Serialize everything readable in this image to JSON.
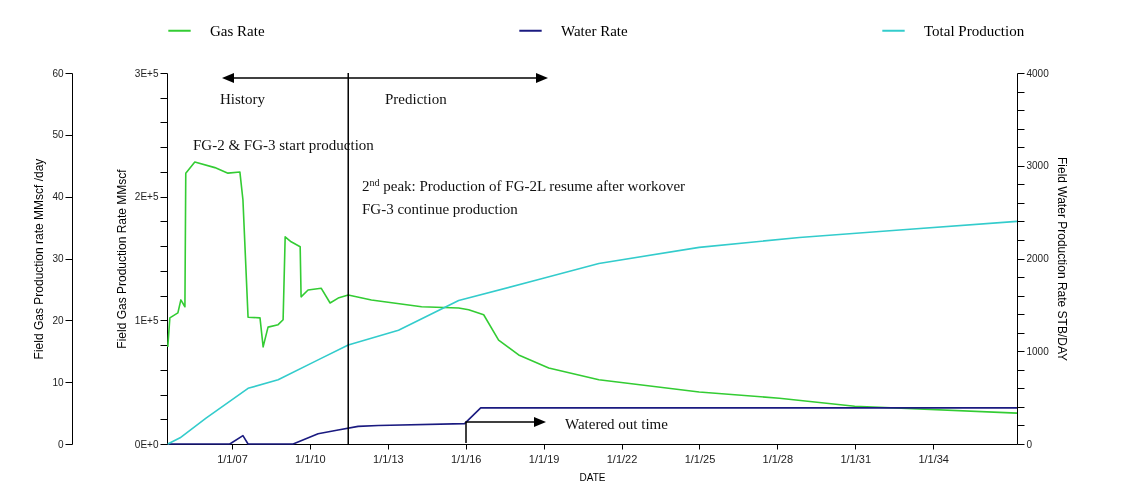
{
  "chart_data": {
    "type": "line",
    "xlabel": "DATE",
    "ylabel": "Field Gas Production rate  MMscf /day",
    "y2label": "Field Gas Production Rate  MMscf",
    "y3label": "Field Water Production Rate  STB/DAY",
    "xlim": [
      "2004-07-01",
      "2037-03-25"
    ],
    "xticks": [
      {
        "value": "2007-01-01",
        "label": "1/1/07"
      },
      {
        "value": "2010-01-01",
        "label": "1/1/10"
      },
      {
        "value": "2013-01-01",
        "label": "1/1/13"
      },
      {
        "value": "2016-01-01",
        "label": "1/1/16"
      },
      {
        "value": "2019-01-01",
        "label": "1/1/19"
      },
      {
        "value": "2022-01-01",
        "label": "1/1/22"
      },
      {
        "value": "2025-01-01",
        "label": "1/1/25"
      },
      {
        "value": "2028-01-01",
        "label": "1/1/28"
      },
      {
        "value": "2031-01-01",
        "label": "1/1/31"
      },
      {
        "value": "2034-01-01",
        "label": "1/1/34"
      }
    ],
    "ylim": [
      0,
      60
    ],
    "yticks": [
      0,
      10,
      20,
      30,
      40,
      50,
      60
    ],
    "y2lim": [
      0,
      300000
    ],
    "y2ticks": [
      {
        "value": 0,
        "label": "0E+0"
      },
      {
        "value": 20000,
        "label": null
      },
      {
        "value": 40000,
        "label": null
      },
      {
        "value": 60000,
        "label": null
      },
      {
        "value": 80000,
        "label": null
      },
      {
        "value": 100000,
        "label": "1E+5"
      },
      {
        "value": 120000,
        "label": null
      },
      {
        "value": 140000,
        "label": null
      },
      {
        "value": 160000,
        "label": null
      },
      {
        "value": 180000,
        "label": null
      },
      {
        "value": 200000,
        "label": "2E+5"
      },
      {
        "value": 220000,
        "label": null
      },
      {
        "value": 240000,
        "label": null
      },
      {
        "value": 260000,
        "label": null
      },
      {
        "value": 280000,
        "label": null
      },
      {
        "value": 300000,
        "label": "3E+5"
      }
    ],
    "y3lim": [
      0,
      4000
    ],
    "y3ticks": [
      0,
      {
        "value": 200,
        "label": null
      },
      {
        "value": 400,
        "label": null
      },
      {
        "value": 600,
        "label": null
      },
      {
        "value": 800,
        "label": null
      },
      1000,
      {
        "value": 1200,
        "label": null
      },
      {
        "value": 1400,
        "label": null
      },
      {
        "value": 1600,
        "label": null
      },
      {
        "value": 1800,
        "label": null
      },
      2000,
      {
        "value": 2200,
        "label": null
      },
      {
        "value": 2400,
        "label": null
      },
      {
        "value": 2600,
        "label": null
      },
      {
        "value": 2800,
        "label": null
      },
      3000,
      {
        "value": 3200,
        "label": null
      },
      {
        "value": 3400,
        "label": null
      },
      {
        "value": 3600,
        "label": null
      },
      {
        "value": 3800,
        "label": null
      },
      4000
    ],
    "series": [
      {
        "name": "Gas Rate",
        "color": "#33cc33",
        "x": [
          "2004-07-12",
          "2004-08-10",
          "2004-12-01",
          "2005-01-12",
          "2005-03-10",
          "2005-03-22",
          "2005-07-27",
          "2006-05-05",
          "2006-11-05",
          "2007-04-22",
          "2007-06-04",
          "2007-08-15",
          "2008-01-30",
          "2008-03-14",
          "2008-05-22",
          "2008-10-11",
          "2008-12-20",
          "2009-01-18",
          "2009-04-12",
          "2009-08-17",
          "2009-08-30",
          "2009-12-06",
          "2010-06-08",
          "2010-10-12",
          "2011-02-02",
          "2011-06-24",
          "2012-05-15",
          "2014-04-20",
          "2015-09-24",
          "2016-02-12",
          "2016-09-10",
          "2017-04-08",
          "2018-01-15",
          "2019-03-14",
          "2021-02-16",
          "2024-12-28",
          "2028-01-30",
          "2030-12-24",
          "2037-03-25"
        ],
        "values": [
          15.7,
          20.4,
          21.2,
          23.3,
          22.2,
          43.8,
          45.6,
          44.7,
          43.8,
          44.0,
          39.5,
          20.5,
          20.4,
          15.7,
          18.9,
          19.3,
          20.1,
          33.5,
          32.7,
          31.9,
          23.8,
          24.9,
          25.2,
          22.8,
          23.6,
          24.1,
          23.3,
          22.2,
          22.0,
          21.7,
          20.9,
          16.8,
          14.4,
          12.3,
          10.4,
          8.4,
          7.4,
          6.1,
          5.0
        ]
      },
      {
        "name": "Water Rate",
        "color": "#1a1a80",
        "axis": "y3",
        "x": [
          "2004-07-12",
          "2006-12-01",
          "2007-06-04",
          "2007-08-15",
          "2009-05-10",
          "2010-04-26",
          "2011-02-02",
          "2011-11-10",
          "2012-08-20",
          "2015-12-16",
          "2016-07-30",
          "2037-03-25"
        ],
        "values": [
          0,
          0,
          90,
          0,
          0,
          110,
          150,
          190,
          200,
          220,
          390,
          390
        ]
      },
      {
        "name": "Total Production",
        "color": "#33cccc",
        "axis": "y2",
        "x": [
          "2004-07-12",
          "2005-01-01",
          "2006-01-01",
          "2007-08-15",
          "2008-10-11",
          "2010-04-26",
          "2011-06-24",
          "2013-05-31",
          "2015-09-24",
          "2018-10-23",
          "2021-02-16",
          "2024-12-28",
          "2028-11-06",
          "2032-09-16",
          "2037-03-25"
        ],
        "values": [
          0,
          5000,
          21000,
          45000,
          52000,
          68000,
          80000,
          92000,
          116000,
          133000,
          146000,
          159000,
          167000,
          173000,
          180000
        ]
      }
    ],
    "ref_lines": [
      {
        "axis": "x",
        "value": "2011-06-24",
        "label": null,
        "color": "#000000"
      }
    ],
    "annotations": [
      "History",
      "Prediction",
      "FG-2 & FG-3 start production",
      "2$^{nd}$ peak: Production of FG-2L resume after workover",
      "FG-3 continue production",
      "Watered out time"
    ],
    "legend": "top"
  }
}
